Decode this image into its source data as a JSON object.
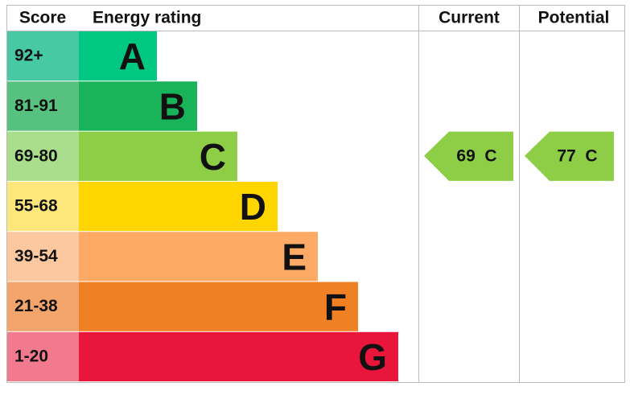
{
  "chart_data": {
    "type": "epc",
    "headers": {
      "score": "Score",
      "rating": "Energy rating",
      "current": "Current",
      "potential": "Potential"
    },
    "bands": [
      {
        "score": "92+",
        "letter": "A",
        "color": "#00c781",
        "score_color": "#47c9a6"
      },
      {
        "score": "81-91",
        "letter": "B",
        "color": "#19b459",
        "score_color": "#57c27f"
      },
      {
        "score": "69-80",
        "letter": "C",
        "color": "#8dce46",
        "score_color": "#a9df8c"
      },
      {
        "score": "55-68",
        "letter": "D",
        "color": "#ffd500",
        "score_color": "#fde67a"
      },
      {
        "score": "39-54",
        "letter": "E",
        "color": "#fcaa65",
        "score_color": "#fcc8a0"
      },
      {
        "score": "21-38",
        "letter": "F",
        "color": "#ef8023",
        "score_color": "#f3a56c"
      },
      {
        "score": "1-20",
        "letter": "G",
        "color": "#e9153b",
        "score_color": "#f27a8e"
      }
    ],
    "current": {
      "value": 69,
      "value_label": "69  C"
    },
    "potential": {
      "value": 77,
      "value_label": "77  C"
    }
  }
}
